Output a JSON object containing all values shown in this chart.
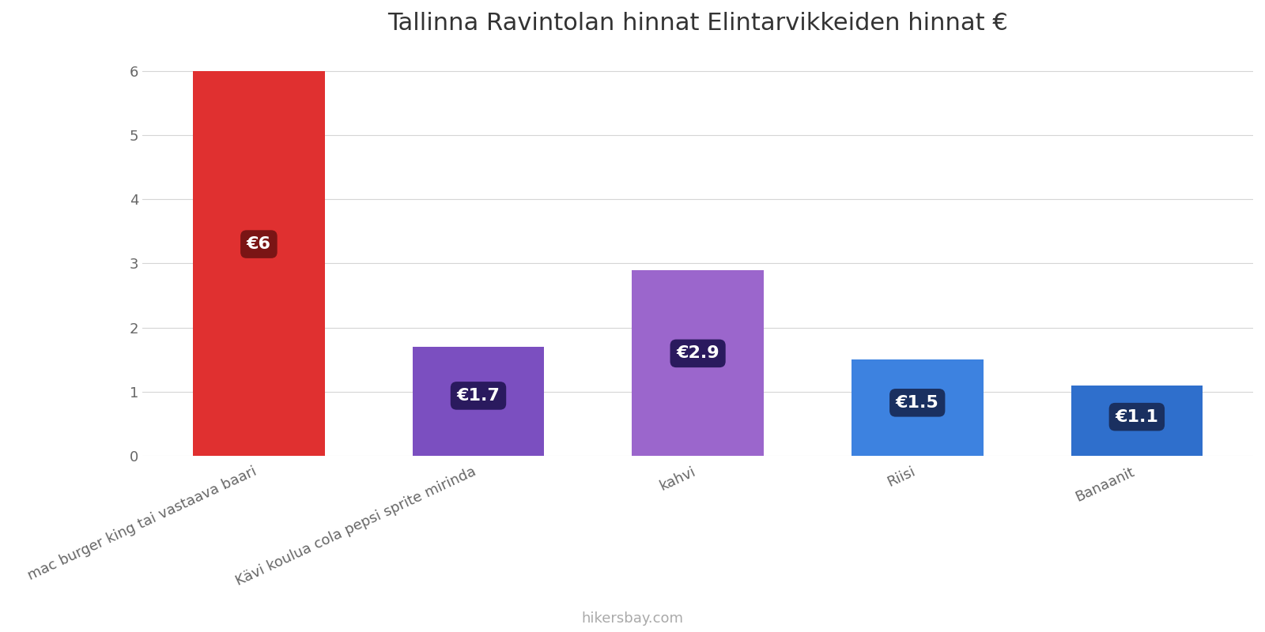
{
  "title": "Tallinna Ravintolan hinnat Elintarvikkeiden hinnat €",
  "categories": [
    "mac burger king tai vastaava baari",
    "Kävi koulua cola pepsi sprite mirinda",
    "kahvi",
    "Riisi",
    "Banaanit"
  ],
  "values": [
    6.0,
    1.7,
    2.9,
    1.5,
    1.1
  ],
  "bar_colors": [
    "#e03030",
    "#7b4fc0",
    "#9b66cc",
    "#3d82e0",
    "#2f6fcc"
  ],
  "label_texts": [
    "€6",
    "€1.7",
    "€2.9",
    "€1.5",
    "€1.1"
  ],
  "label_box_colors": [
    "#7a1515",
    "#2a1a5e",
    "#2a1a5e",
    "#1a3060",
    "#1a3060"
  ],
  "ylim": [
    0,
    6.3
  ],
  "yticks": [
    0,
    1,
    2,
    3,
    4,
    5,
    6
  ],
  "watermark": "hikersbay.com",
  "background_color": "#ffffff",
  "grid_color": "#d5d5d5",
  "title_fontsize": 22,
  "label_fontsize": 16,
  "tick_fontsize": 13,
  "watermark_fontsize": 13
}
